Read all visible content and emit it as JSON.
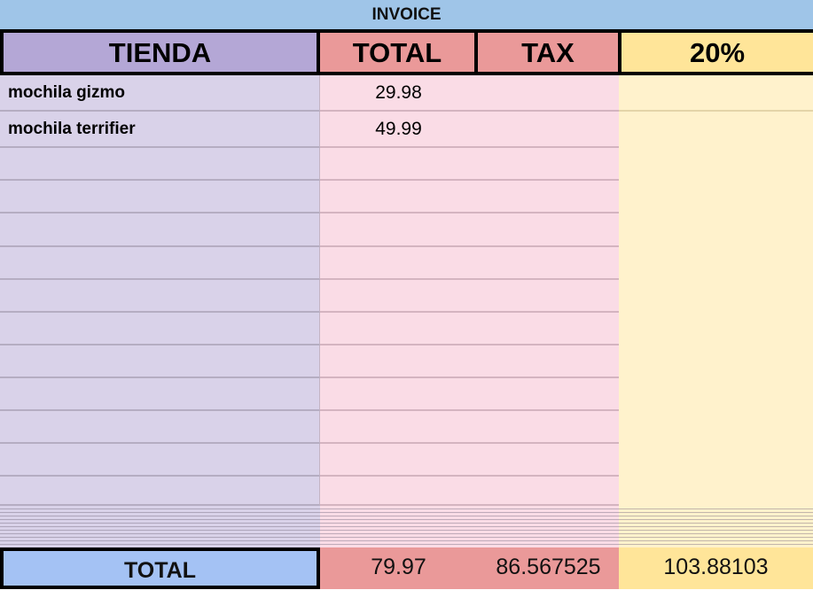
{
  "title": "INVOICE",
  "headers": {
    "store": "TIENDA",
    "total": "TOTAL",
    "tax": "TAX",
    "percent": "20%"
  },
  "rows": [
    {
      "store": "mochila gizmo",
      "total": "29.98",
      "tax": "",
      "percent": ""
    },
    {
      "store": "mochila terrifier",
      "total": "49.99",
      "tax": "",
      "percent": ""
    }
  ],
  "totals": {
    "label": "TOTAL",
    "total": "79.97",
    "tax": "86.567525",
    "percent": "103.88103"
  },
  "colors": {
    "title": "#9fc5e8",
    "store": "#d9d2e9",
    "store_header": "#b4a7d6",
    "total": "#fadce6",
    "total_header": "#ea9999",
    "percent": "#fff2cc",
    "percent_header": "#ffe599",
    "totals_label": "#a4c2f4"
  }
}
